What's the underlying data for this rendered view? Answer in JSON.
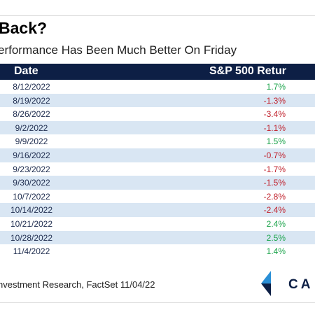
{
  "title": "Back?",
  "subtitle": "erformance Has Been Much Better On Friday",
  "table": {
    "headers": {
      "date": "Date",
      "return": "S&P 500 Retur"
    },
    "rows": [
      {
        "date": "8/12/2022",
        "return": "1.7%",
        "sign": "pos"
      },
      {
        "date": "8/19/2022",
        "return": "-1.3%",
        "sign": "neg"
      },
      {
        "date": "8/26/2022",
        "return": "-3.4%",
        "sign": "neg"
      },
      {
        "date": "9/2/2022",
        "return": "-1.1%",
        "sign": "neg"
      },
      {
        "date": "9/9/2022",
        "return": "1.5%",
        "sign": "pos"
      },
      {
        "date": "9/16/2022",
        "return": "-0.7%",
        "sign": "neg"
      },
      {
        "date": "9/23/2022",
        "return": "-1.7%",
        "sign": "neg"
      },
      {
        "date": "9/30/2022",
        "return": "-1.5%",
        "sign": "neg"
      },
      {
        "date": "10/7/2022",
        "return": "-2.8%",
        "sign": "neg"
      },
      {
        "date": "10/14/2022",
        "return": "-2.4%",
        "sign": "neg"
      },
      {
        "date": "10/21/2022",
        "return": "2.4%",
        "sign": "pos"
      },
      {
        "date": "10/28/2022",
        "return": "2.5%",
        "sign": "pos"
      },
      {
        "date": "11/4/2022",
        "return": "1.4%",
        "sign": "pos"
      }
    ]
  },
  "source": "nvestment Research, FactSet 11/04/22",
  "logo": {
    "text": "CA"
  },
  "colors": {
    "header_bg": "#0d1f45",
    "stripe": "#d9e6f3",
    "positive": "#1aa34a",
    "negative": "#c0212c"
  }
}
